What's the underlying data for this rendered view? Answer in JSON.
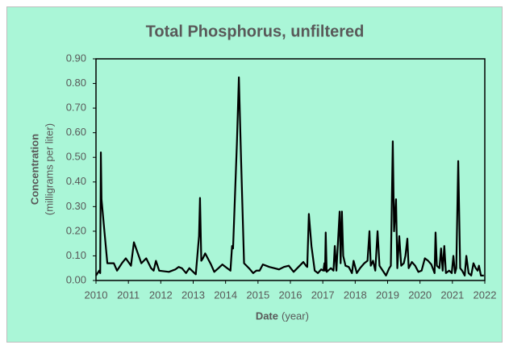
{
  "chart_data": {
    "type": "line",
    "title": "Total Phosphorus, unfiltered",
    "x_label": "Date",
    "x_unit": "(year)",
    "y_label": "Concentration",
    "y_unit": "(milligrams per liter)",
    "color": "#000000",
    "xlim": [
      2010,
      2022
    ],
    "xticks": [
      2010,
      2011,
      2012,
      2013,
      2014,
      2015,
      2016,
      2017,
      2018,
      2019,
      2020,
      2021,
      2022
    ],
    "ylim": [
      0,
      0.9
    ],
    "yticks": [
      {
        "value": 0,
        "label": "0.00"
      },
      {
        "value": 0.1,
        "label": "0.10"
      },
      {
        "value": 0.2,
        "label": "0.20"
      },
      {
        "value": 0.3,
        "label": "0.30"
      },
      {
        "value": 0.4,
        "label": "0.40"
      },
      {
        "value": 0.5,
        "label": "0.50"
      },
      {
        "value": 0.6,
        "label": "0.60"
      },
      {
        "value": 0.7,
        "label": "0.70"
      },
      {
        "value": 0.8,
        "label": "0.80"
      },
      {
        "value": 0.9,
        "label": "0.90"
      }
    ],
    "x": [
      2010.0,
      2010.1,
      2010.13,
      2010.15,
      2010.17,
      2010.35,
      2010.55,
      2010.65,
      2010.8,
      2010.92,
      2011.08,
      2011.17,
      2011.4,
      2011.55,
      2011.7,
      2011.78,
      2011.85,
      2011.95,
      2012.25,
      2012.45,
      2012.55,
      2012.65,
      2012.78,
      2012.88,
      2013.0,
      2013.08,
      2013.18,
      2013.21,
      2013.25,
      2013.3,
      2013.37,
      2013.55,
      2013.65,
      2013.78,
      2013.9,
      2014.05,
      2014.15,
      2014.2,
      2014.23,
      2014.35,
      2014.41,
      2014.48,
      2014.57,
      2014.72,
      2014.85,
      2014.95,
      2015.05,
      2015.15,
      2015.35,
      2015.65,
      2015.8,
      2015.95,
      2016.1,
      2016.25,
      2016.4,
      2016.48,
      2016.52,
      2016.57,
      2016.65,
      2016.75,
      2016.85,
      2016.95,
      2017.02,
      2017.05,
      2017.07,
      2017.09,
      2017.12,
      2017.25,
      2017.33,
      2017.37,
      2017.42,
      2017.52,
      2017.55,
      2017.59,
      2017.63,
      2017.7,
      2017.8,
      2017.9,
      2017.95,
      2018.05,
      2018.15,
      2018.28,
      2018.38,
      2018.44,
      2018.48,
      2018.55,
      2018.62,
      2018.69,
      2018.75,
      2018.85,
      2018.95,
      2019.05,
      2019.1,
      2019.16,
      2019.2,
      2019.26,
      2019.3,
      2019.36,
      2019.42,
      2019.5,
      2019.55,
      2019.61,
      2019.65,
      2019.75,
      2019.85,
      2019.95,
      2020.05,
      2020.15,
      2020.25,
      2020.35,
      2020.45,
      2020.48,
      2020.52,
      2020.6,
      2020.65,
      2020.7,
      2020.75,
      2020.8,
      2020.9,
      2020.98,
      2021.03,
      2021.08,
      2021.12,
      2021.18,
      2021.24,
      2021.3,
      2021.38,
      2021.43,
      2021.5,
      2021.58,
      2021.65,
      2021.72,
      2021.78,
      2021.82,
      2021.88,
      2021.97
    ],
    "values": [
      0.02,
      0.04,
      0.03,
      0.52,
      0.33,
      0.07,
      0.07,
      0.04,
      0.07,
      0.09,
      0.06,
      0.155,
      0.07,
      0.09,
      0.05,
      0.04,
      0.08,
      0.04,
      0.035,
      0.045,
      0.055,
      0.05,
      0.03,
      0.05,
      0.035,
      0.025,
      0.18,
      0.335,
      0.08,
      0.09,
      0.11,
      0.065,
      0.035,
      0.05,
      0.065,
      0.05,
      0.04,
      0.14,
      0.13,
      0.56,
      0.825,
      0.48,
      0.07,
      0.05,
      0.03,
      0.04,
      0.04,
      0.065,
      0.055,
      0.045,
      0.055,
      0.06,
      0.035,
      0.055,
      0.075,
      0.06,
      0.055,
      0.27,
      0.14,
      0.04,
      0.03,
      0.045,
      0.04,
      0.07,
      0.04,
      0.195,
      0.035,
      0.05,
      0.04,
      0.14,
      0.04,
      0.28,
      0.07,
      0.28,
      0.1,
      0.06,
      0.055,
      0.03,
      0.08,
      0.03,
      0.05,
      0.07,
      0.08,
      0.2,
      0.06,
      0.08,
      0.04,
      0.2,
      0.06,
      0.04,
      0.02,
      0.05,
      0.06,
      0.565,
      0.2,
      0.33,
      0.05,
      0.18,
      0.06,
      0.07,
      0.1,
      0.17,
      0.05,
      0.075,
      0.06,
      0.035,
      0.04,
      0.09,
      0.08,
      0.065,
      0.03,
      0.195,
      0.06,
      0.05,
      0.13,
      0.04,
      0.14,
      0.03,
      0.04,
      0.03,
      0.1,
      0.03,
      0.05,
      0.485,
      0.05,
      0.04,
      0.02,
      0.1,
      0.03,
      0.02,
      0.07,
      0.05,
      0.04,
      0.06,
      0.02,
      0.02
    ]
  }
}
